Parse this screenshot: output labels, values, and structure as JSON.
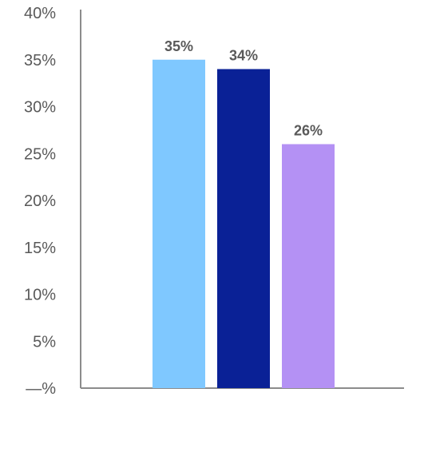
{
  "chart_data": {
    "type": "bar",
    "title": "",
    "xlabel": "",
    "ylabel": "",
    "ylim": [
      0,
      40
    ],
    "yticks": [
      {
        "value": 0,
        "label": "—%"
      },
      {
        "value": 5,
        "label": "5%"
      },
      {
        "value": 10,
        "label": "10%"
      },
      {
        "value": 15,
        "label": "15%"
      },
      {
        "value": 20,
        "label": "20%"
      },
      {
        "value": 25,
        "label": "25%"
      },
      {
        "value": 30,
        "label": "30%"
      },
      {
        "value": 35,
        "label": "35%"
      },
      {
        "value": 40,
        "label": "40%"
      }
    ],
    "grid": false,
    "legend": "none",
    "series": [
      {
        "values": [
          35
        ],
        "color": "#7fc8ff"
      },
      {
        "values": [
          34
        ],
        "color": "#0a2196"
      },
      {
        "values": [
          26
        ],
        "color": "#b491f4"
      }
    ],
    "data_labels": [
      "35%",
      "34%",
      "26%"
    ]
  }
}
